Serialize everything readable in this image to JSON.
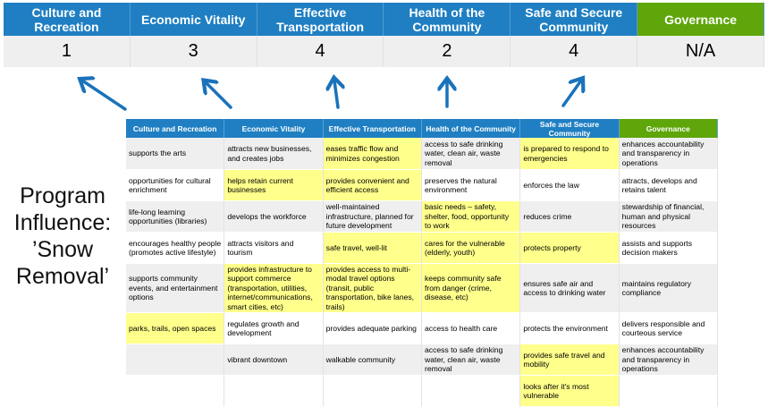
{
  "colors": {
    "header_blue": "#1f7fc2",
    "governance_green": "#5ea60a",
    "highlight": "#ffff8c",
    "row_gray": "#efefef",
    "arrow": "#1a72bb"
  },
  "summary": {
    "headers": [
      "Culture and Recreation",
      "Economic Vitality",
      "Effective Transportation",
      "Health of the Community",
      "Safe and Secure Community",
      "Governance"
    ],
    "scores": [
      "1",
      "3",
      "4",
      "2",
      "4",
      "N/A"
    ]
  },
  "title_lines": [
    "Program",
    "Influence:",
    "’Snow",
    "Removal’"
  ],
  "table": {
    "headers": [
      "Culture and Recreation",
      "Economic Vitality",
      "Effective Transportation",
      "Health of the Community",
      "Safe and Secure Community",
      "Governance"
    ],
    "rows": [
      [
        "supports the arts",
        "attracts new businesses, and creates jobs",
        "eases traffic flow and minimizes congestion",
        "access to safe drinking water, clean air, waste removal",
        "is prepared to respond to emergencies",
        "enhances accountability and transparency in operations"
      ],
      [
        "opportunities for cultural enrichment",
        "helps retain current businesses",
        "provides convenient and efficient access",
        "preserves the natural environment",
        "enforces the law",
        "attracts, develops and retains talent"
      ],
      [
        "life-long learning opportunities (libraries)",
        "develops the workforce",
        "well-maintained infrastructure, planned for future development",
        "basic needs – safety, shelter, food, opportunity to work",
        "reduces crime",
        "stewardship of financial, human and physical resources"
      ],
      [
        "encourages healthy people (promotes active lifestyle)",
        "attracts visitors and tourism",
        "safe travel, well-lit",
        "cares for the vulnerable (elderly, youth)",
        "protects property",
        "assists and supports decision makers"
      ],
      [
        "supports community events, and entertainment options",
        "provides infrastructure to support commerce (transportation, utilities, internet/communications, smart cities, etc)",
        "provides access to multi-modal travel options (transit, public transportation, bike lanes, trails)",
        "keeps community safe from danger (crime, disease, etc)",
        "ensures safe air and access to drinking water",
        "maintains regulatory compliance"
      ],
      [
        "parks, trails, open spaces",
        "regulates growth and development",
        "provides adequate parking",
        "access to health care",
        "protects the environment",
        "delivers responsible and courteous service"
      ],
      [
        "",
        "vibrant downtown",
        "walkable community",
        "access to safe drinking water, clean air, waste removal",
        "provides safe travel and mobility",
        "enhances accountability and transparency in operations"
      ],
      [
        "",
        "",
        "",
        "",
        "looks after it's most vulnerable",
        ""
      ]
    ],
    "highlighted": [
      [
        2,
        4
      ],
      [
        1,
        2
      ],
      [
        3
      ],
      [
        2,
        3,
        4
      ],
      [
        1,
        2,
        3
      ],
      [
        0
      ],
      [
        4
      ],
      [
        4
      ]
    ]
  }
}
